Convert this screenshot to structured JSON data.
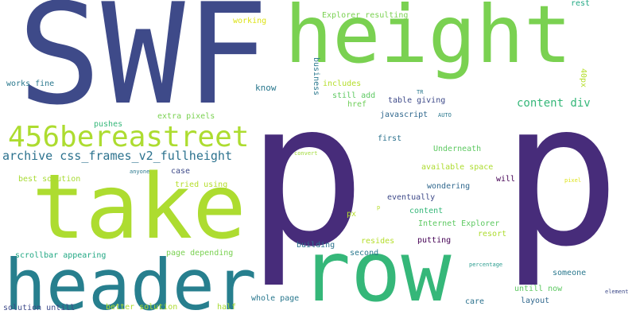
{
  "words": {
    "swf": "SWF",
    "height": "height",
    "p1": "p",
    "p2": "p",
    "take": "take",
    "header": "header",
    "row": "row",
    "bb": "456bereastreet",
    "archive": "archive css_frames_v2_fullheight",
    "content_div": "content div",
    "working": "working",
    "explorer_resulting": "Explorer resulting",
    "rest": "rest",
    "know": "know",
    "business": "business",
    "includes": "includes",
    "still_add": "still add",
    "href": "href",
    "table_giving": "table giving",
    "tr": "TR",
    "px40": "40px",
    "works_fine": "works fine",
    "extra_pixels": "extra pixels",
    "pushes": "pushes",
    "javascript": "javascript",
    "auto": "AUTO",
    "first": "first",
    "convert": "convert",
    "underneath": "Underneath",
    "best_solution": "best solution",
    "anyone": "anyone",
    "case": "case",
    "available_space": "available space",
    "tried_using": "tried using",
    "will": "will",
    "pixel": "pixel",
    "wondering": "wondering",
    "eventually": "eventually",
    "p_small": "p",
    "content": "content",
    "px": "px",
    "internet_explorer": "Internet Explorer",
    "resort": "resort",
    "putting": "putting",
    "resides": "resides",
    "building": "building",
    "second": "second",
    "scrollbar_appearing": "scrollbar appearing",
    "page_depending": "page depending",
    "percentage": "percentage",
    "someone": "someone",
    "untill_now": "untill now",
    "element": "element",
    "whole_page": "whole page",
    "layout": "layout",
    "care": "care",
    "half": "half",
    "solution_untill": "solution untill",
    "better_solution": "better solution"
  }
}
